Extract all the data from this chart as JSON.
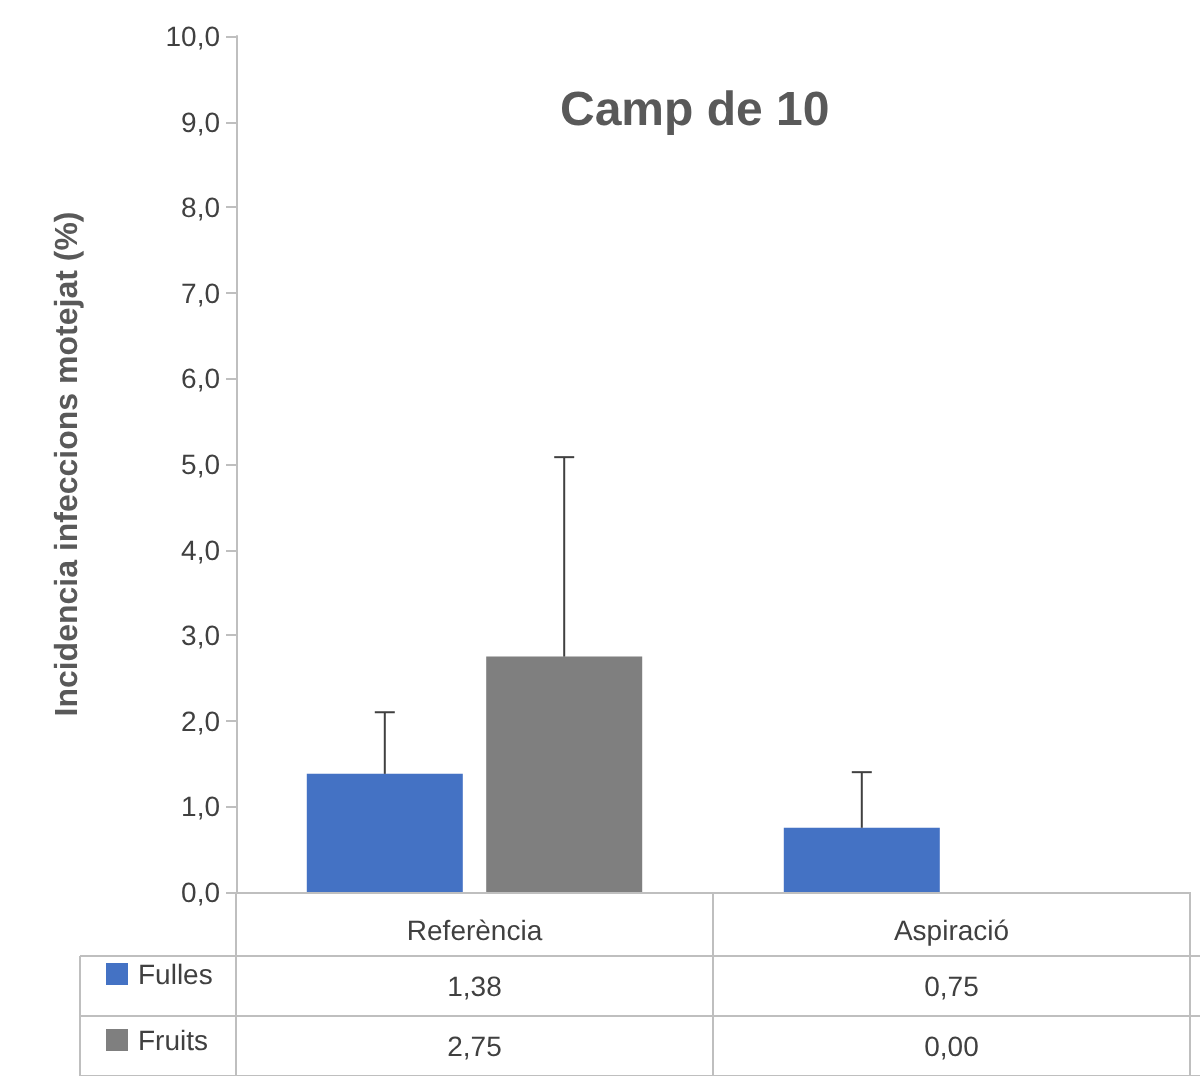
{
  "chart_data": {
    "type": "bar",
    "title": "Camp de 10",
    "ylabel": "Incidencia infeccions motejat (%)",
    "categories": [
      "Referència",
      "Aspiració"
    ],
    "series": [
      {
        "name": "Fulles",
        "color": "#4472c4",
        "values": [
          1.38,
          0.75
        ],
        "errors": [
          [
            1.38,
            2.1
          ],
          [
            0.75,
            1.4
          ]
        ],
        "value_labels": [
          "1,38",
          "0,75"
        ]
      },
      {
        "name": "Fruits",
        "color": "#7f7f7f",
        "values": [
          2.75,
          0.0
        ],
        "errors": [
          [
            2.75,
            5.08
          ],
          null
        ],
        "value_labels": [
          "2,75",
          "0,00"
        ]
      }
    ],
    "ylim": [
      0,
      10
    ],
    "yticks": [
      {
        "value": 0,
        "label": "0,0"
      },
      {
        "value": 1,
        "label": "1,0"
      },
      {
        "value": 2,
        "label": "2,0"
      },
      {
        "value": 3,
        "label": "3,0"
      },
      {
        "value": 4,
        "label": "4,0"
      },
      {
        "value": 5,
        "label": "5,0"
      },
      {
        "value": 6,
        "label": "6,0"
      },
      {
        "value": 7,
        "label": "7,0"
      },
      {
        "value": 8,
        "label": "8,0"
      },
      {
        "value": 9,
        "label": "9,0"
      },
      {
        "value": 10,
        "label": "10,0"
      }
    ],
    "grid": false,
    "legend": "bottom left"
  }
}
